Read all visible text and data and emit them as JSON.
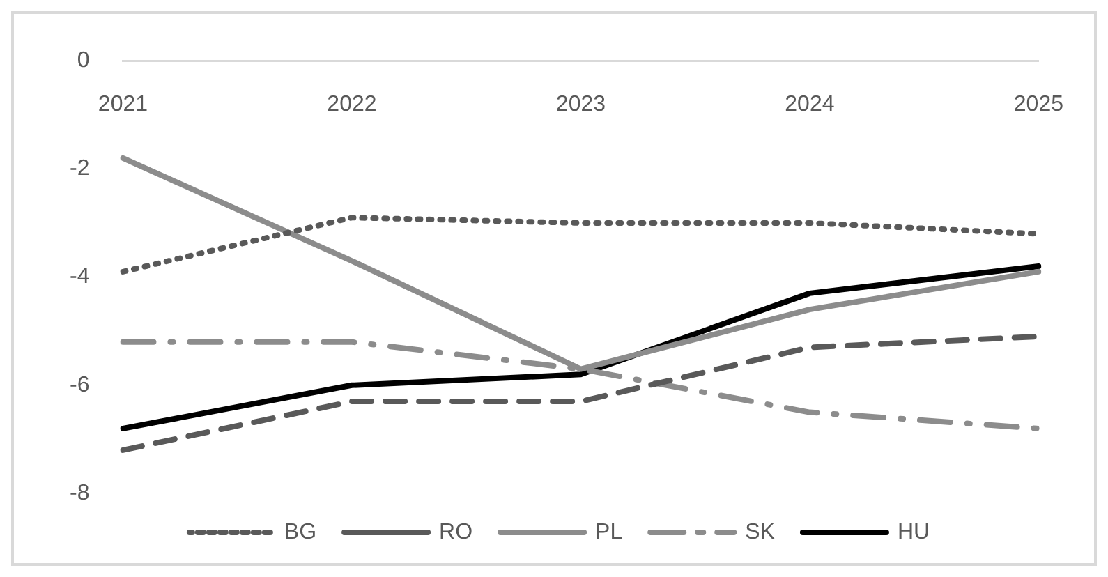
{
  "chart_data": {
    "type": "line",
    "categories": [
      "2021",
      "2022",
      "2023",
      "2024",
      "2025"
    ],
    "ylim": [
      -8,
      0
    ],
    "yticks": [
      -8,
      -6,
      -4,
      -2,
      0
    ],
    "grid": false,
    "legend": "bottom",
    "marker": "none",
    "series": [
      {
        "name": "BG",
        "color": "#595959",
        "line_style": "dotted",
        "values": [
          -3.9,
          -2.9,
          -3.0,
          -3.0,
          -3.2
        ]
      },
      {
        "name": "RO",
        "color": "#595959",
        "line_style": "dashed",
        "values": [
          -7.2,
          -6.3,
          -6.3,
          -5.3,
          -5.1
        ]
      },
      {
        "name": "PL",
        "color": "#8c8c8c",
        "line_style": "solid",
        "values": [
          -1.8,
          -3.7,
          -5.7,
          -4.6,
          -3.9
        ]
      },
      {
        "name": "SK",
        "color": "#8c8c8c",
        "line_style": "dashdot",
        "values": [
          -5.2,
          -5.2,
          -5.7,
          -6.5,
          -6.8
        ]
      },
      {
        "name": "HU",
        "color": "#000000",
        "line_style": "solid",
        "values": [
          -6.8,
          -6.0,
          -5.8,
          -4.3,
          -3.8
        ]
      }
    ]
  }
}
